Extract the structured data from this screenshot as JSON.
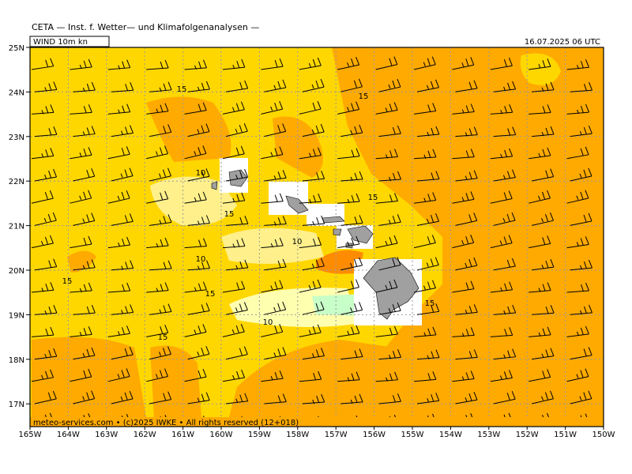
{
  "header": {
    "title": "CETA — Inst. f. Wetter— und Klimafolgenanalysen —",
    "field": "WIND 10m kn",
    "datetime": "16.07.2025 06 UTC"
  },
  "map": {
    "lat_labels": [
      "25N",
      "24N",
      "23N",
      "22N",
      "21N",
      "20N",
      "19N",
      "18N",
      "17N"
    ],
    "lon_labels": [
      "165W",
      "164W",
      "163W",
      "162W",
      "161W",
      "160W",
      "159W",
      "158W",
      "157W",
      "156W",
      "155W",
      "154W",
      "153W",
      "152W",
      "151W",
      "150W"
    ],
    "contour_labels": [
      "15",
      "15",
      "10",
      "15",
      "15",
      "10",
      "10",
      "15",
      "15",
      "15",
      "10",
      "15"
    ]
  },
  "footer": "meteo-services.com • (c)2025 IWKE • All rights reserved (12+018)"
}
